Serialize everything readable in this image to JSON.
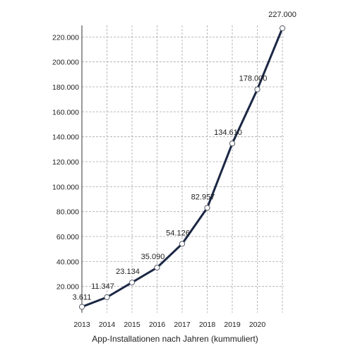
{
  "chart_data": {
    "type": "line",
    "title": "",
    "xlabel": "App-Installationen nach Jahren (kummuliert)",
    "ylabel": "",
    "ylim": [
      0,
      227000
    ],
    "xlim": [
      2013,
      2021
    ],
    "grid": true,
    "legend": "none",
    "x_tick_labels": [
      "2013",
      "2014",
      "2015",
      "2016",
      "2017",
      "2018",
      "2019",
      "2020"
    ],
    "y_ticks": [
      20000,
      40000,
      60000,
      80000,
      100000,
      120000,
      140000,
      160000,
      180000,
      200000,
      220000
    ],
    "y_tick_labels": [
      "20.000",
      "40.000",
      "60.000",
      "80.000",
      "100.000",
      "120.000",
      "140.000",
      "160.000",
      "180.000",
      "200.000",
      "220.000"
    ],
    "series": [
      {
        "x": [
          2013,
          2014,
          2015,
          2016,
          2017,
          2018,
          2019,
          2020,
          2021
        ],
        "values": [
          3611,
          11347,
          23134,
          35090,
          54126,
          82957,
          134610,
          178000,
          227000
        ],
        "labels": [
          "3.611",
          "11.347",
          "23.134",
          "35.090",
          "54.126",
          "82.957",
          "134.610",
          "178.000",
          "227.000"
        ],
        "color": "#1b2744"
      }
    ]
  }
}
